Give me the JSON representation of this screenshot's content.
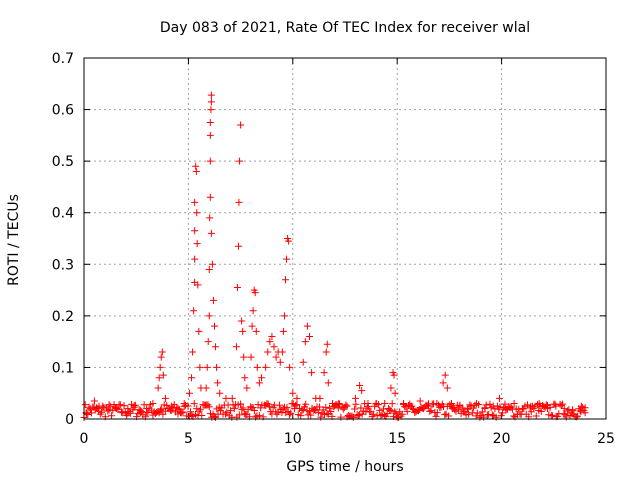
{
  "chart_data": {
    "type": "scatter",
    "title": "Day 083 of 2021, Rate Of TEC Index for receiver wlal",
    "xlabel": "GPS time / hours",
    "ylabel": "ROTI / TECUs",
    "xlim": [
      0,
      25
    ],
    "ylim": [
      0,
      0.7
    ],
    "x_ticks": [
      0,
      5,
      10,
      15,
      20,
      25
    ],
    "y_ticks": [
      0,
      0.1,
      0.2,
      0.3,
      0.4,
      0.5,
      0.6,
      0.7
    ],
    "x_tick_labels": [
      "0",
      "5",
      "10",
      "15",
      "20",
      "25"
    ],
    "y_tick_labels": [
      "0",
      "0.1",
      "0.2",
      "0.3",
      "0.4",
      "0.5",
      "0.6",
      "0.7"
    ],
    "grid": true,
    "marker": "+",
    "marker_color": "#ff0000",
    "series": [
      {
        "name": "ROTI",
        "points": [
          [
            0.1,
            0.012
          ],
          [
            0.3,
            0.02
          ],
          [
            0.5,
            0.035
          ],
          [
            0.7,
            0.015
          ],
          [
            0.9,
            0.025
          ],
          [
            1.2,
            0.018
          ],
          [
            1.5,
            0.022
          ],
          [
            1.8,
            0.014
          ],
          [
            2.1,
            0.02
          ],
          [
            2.4,
            0.026
          ],
          [
            2.7,
            0.012
          ],
          [
            3.0,
            0.02
          ],
          [
            3.3,
            0.03
          ],
          [
            3.55,
            0.06
          ],
          [
            3.6,
            0.08
          ],
          [
            3.65,
            0.1
          ],
          [
            3.7,
            0.12
          ],
          [
            3.75,
            0.13
          ],
          [
            3.8,
            0.085
          ],
          [
            3.9,
            0.04
          ],
          [
            4.2,
            0.025
          ],
          [
            4.5,
            0.02
          ],
          [
            4.8,
            0.03
          ],
          [
            5.05,
            0.05
          ],
          [
            5.15,
            0.08
          ],
          [
            5.2,
            0.13
          ],
          [
            5.25,
            0.21
          ],
          [
            5.3,
            0.265
          ],
          [
            5.3,
            0.31
          ],
          [
            5.3,
            0.365
          ],
          [
            5.3,
            0.42
          ],
          [
            5.35,
            0.49
          ],
          [
            5.38,
            0.48
          ],
          [
            5.4,
            0.4
          ],
          [
            5.42,
            0.34
          ],
          [
            5.45,
            0.26
          ],
          [
            5.5,
            0.17
          ],
          [
            5.55,
            0.1
          ],
          [
            5.6,
            0.06
          ],
          [
            5.85,
            0.06
          ],
          [
            5.9,
            0.1
          ],
          [
            5.95,
            0.15
          ],
          [
            6.0,
            0.2
          ],
          [
            6.0,
            0.29
          ],
          [
            6.02,
            0.39
          ],
          [
            6.05,
            0.43
          ],
          [
            6.05,
            0.5
          ],
          [
            6.05,
            0.55
          ],
          [
            6.05,
            0.575
          ],
          [
            6.08,
            0.6
          ],
          [
            6.1,
            0.615
          ],
          [
            6.1,
            0.628
          ],
          [
            6.1,
            0.36
          ],
          [
            6.15,
            0.3
          ],
          [
            6.2,
            0.23
          ],
          [
            6.25,
            0.18
          ],
          [
            6.3,
            0.14
          ],
          [
            6.35,
            0.1
          ],
          [
            6.4,
            0.07
          ],
          [
            6.5,
            0.05
          ],
          [
            6.8,
            0.04
          ],
          [
            7.1,
            0.04
          ],
          [
            7.3,
            0.14
          ],
          [
            7.35,
            0.255
          ],
          [
            7.4,
            0.335
          ],
          [
            7.42,
            0.42
          ],
          [
            7.45,
            0.5
          ],
          [
            7.5,
            0.57
          ],
          [
            7.55,
            0.19
          ],
          [
            7.6,
            0.17
          ],
          [
            7.65,
            0.12
          ],
          [
            7.7,
            0.08
          ],
          [
            7.8,
            0.06
          ],
          [
            8.0,
            0.12
          ],
          [
            8.05,
            0.18
          ],
          [
            8.1,
            0.21
          ],
          [
            8.15,
            0.25
          ],
          [
            8.2,
            0.245
          ],
          [
            8.25,
            0.17
          ],
          [
            8.3,
            0.1
          ],
          [
            8.4,
            0.07
          ],
          [
            8.5,
            0.08
          ],
          [
            8.7,
            0.1
          ],
          [
            8.8,
            0.13
          ],
          [
            8.9,
            0.15
          ],
          [
            9.0,
            0.16
          ],
          [
            9.1,
            0.14
          ],
          [
            9.2,
            0.12
          ],
          [
            9.3,
            0.13
          ],
          [
            9.4,
            0.11
          ],
          [
            9.5,
            0.13
          ],
          [
            9.55,
            0.17
          ],
          [
            9.6,
            0.2
          ],
          [
            9.65,
            0.27
          ],
          [
            9.7,
            0.31
          ],
          [
            9.75,
            0.35
          ],
          [
            9.8,
            0.345
          ],
          [
            9.85,
            0.1
          ],
          [
            10.0,
            0.05
          ],
          [
            10.2,
            0.04
          ],
          [
            10.5,
            0.11
          ],
          [
            10.6,
            0.15
          ],
          [
            10.7,
            0.18
          ],
          [
            10.8,
            0.16
          ],
          [
            10.9,
            0.09
          ],
          [
            11.1,
            0.04
          ],
          [
            11.3,
            0.04
          ],
          [
            11.5,
            0.09
          ],
          [
            11.6,
            0.13
          ],
          [
            11.65,
            0.145
          ],
          [
            11.7,
            0.07
          ],
          [
            11.9,
            0.03
          ],
          [
            12.2,
            0.03
          ],
          [
            12.6,
            0.025
          ],
          [
            13.0,
            0.04
          ],
          [
            13.2,
            0.065
          ],
          [
            13.3,
            0.055
          ],
          [
            13.6,
            0.03
          ],
          [
            14.0,
            0.03
          ],
          [
            14.4,
            0.03
          ],
          [
            14.7,
            0.06
          ],
          [
            14.8,
            0.09
          ],
          [
            14.85,
            0.085
          ],
          [
            14.9,
            0.05
          ],
          [
            15.3,
            0.03
          ],
          [
            15.7,
            0.025
          ],
          [
            16.1,
            0.035
          ],
          [
            16.5,
            0.025
          ],
          [
            16.9,
            0.03
          ],
          [
            17.2,
            0.07
          ],
          [
            17.3,
            0.085
          ],
          [
            17.4,
            0.06
          ],
          [
            17.6,
            0.03
          ],
          [
            18.0,
            0.025
          ],
          [
            18.4,
            0.02
          ],
          [
            18.8,
            0.03
          ],
          [
            19.2,
            0.02
          ],
          [
            19.6,
            0.025
          ],
          [
            19.9,
            0.04
          ],
          [
            20.2,
            0.02
          ],
          [
            20.6,
            0.03
          ],
          [
            21.0,
            0.02
          ],
          [
            21.4,
            0.025
          ],
          [
            21.8,
            0.03
          ],
          [
            22.2,
            0.02
          ],
          [
            22.6,
            0.025
          ],
          [
            23.0,
            0.02
          ],
          [
            23.4,
            0.018
          ],
          [
            23.8,
            0.015
          ],
          [
            24.0,
            0.012
          ]
        ],
        "baseline": {
          "x_range": [
            0,
            24
          ],
          "y_range": [
            0.003,
            0.03
          ]
        }
      }
    ]
  }
}
